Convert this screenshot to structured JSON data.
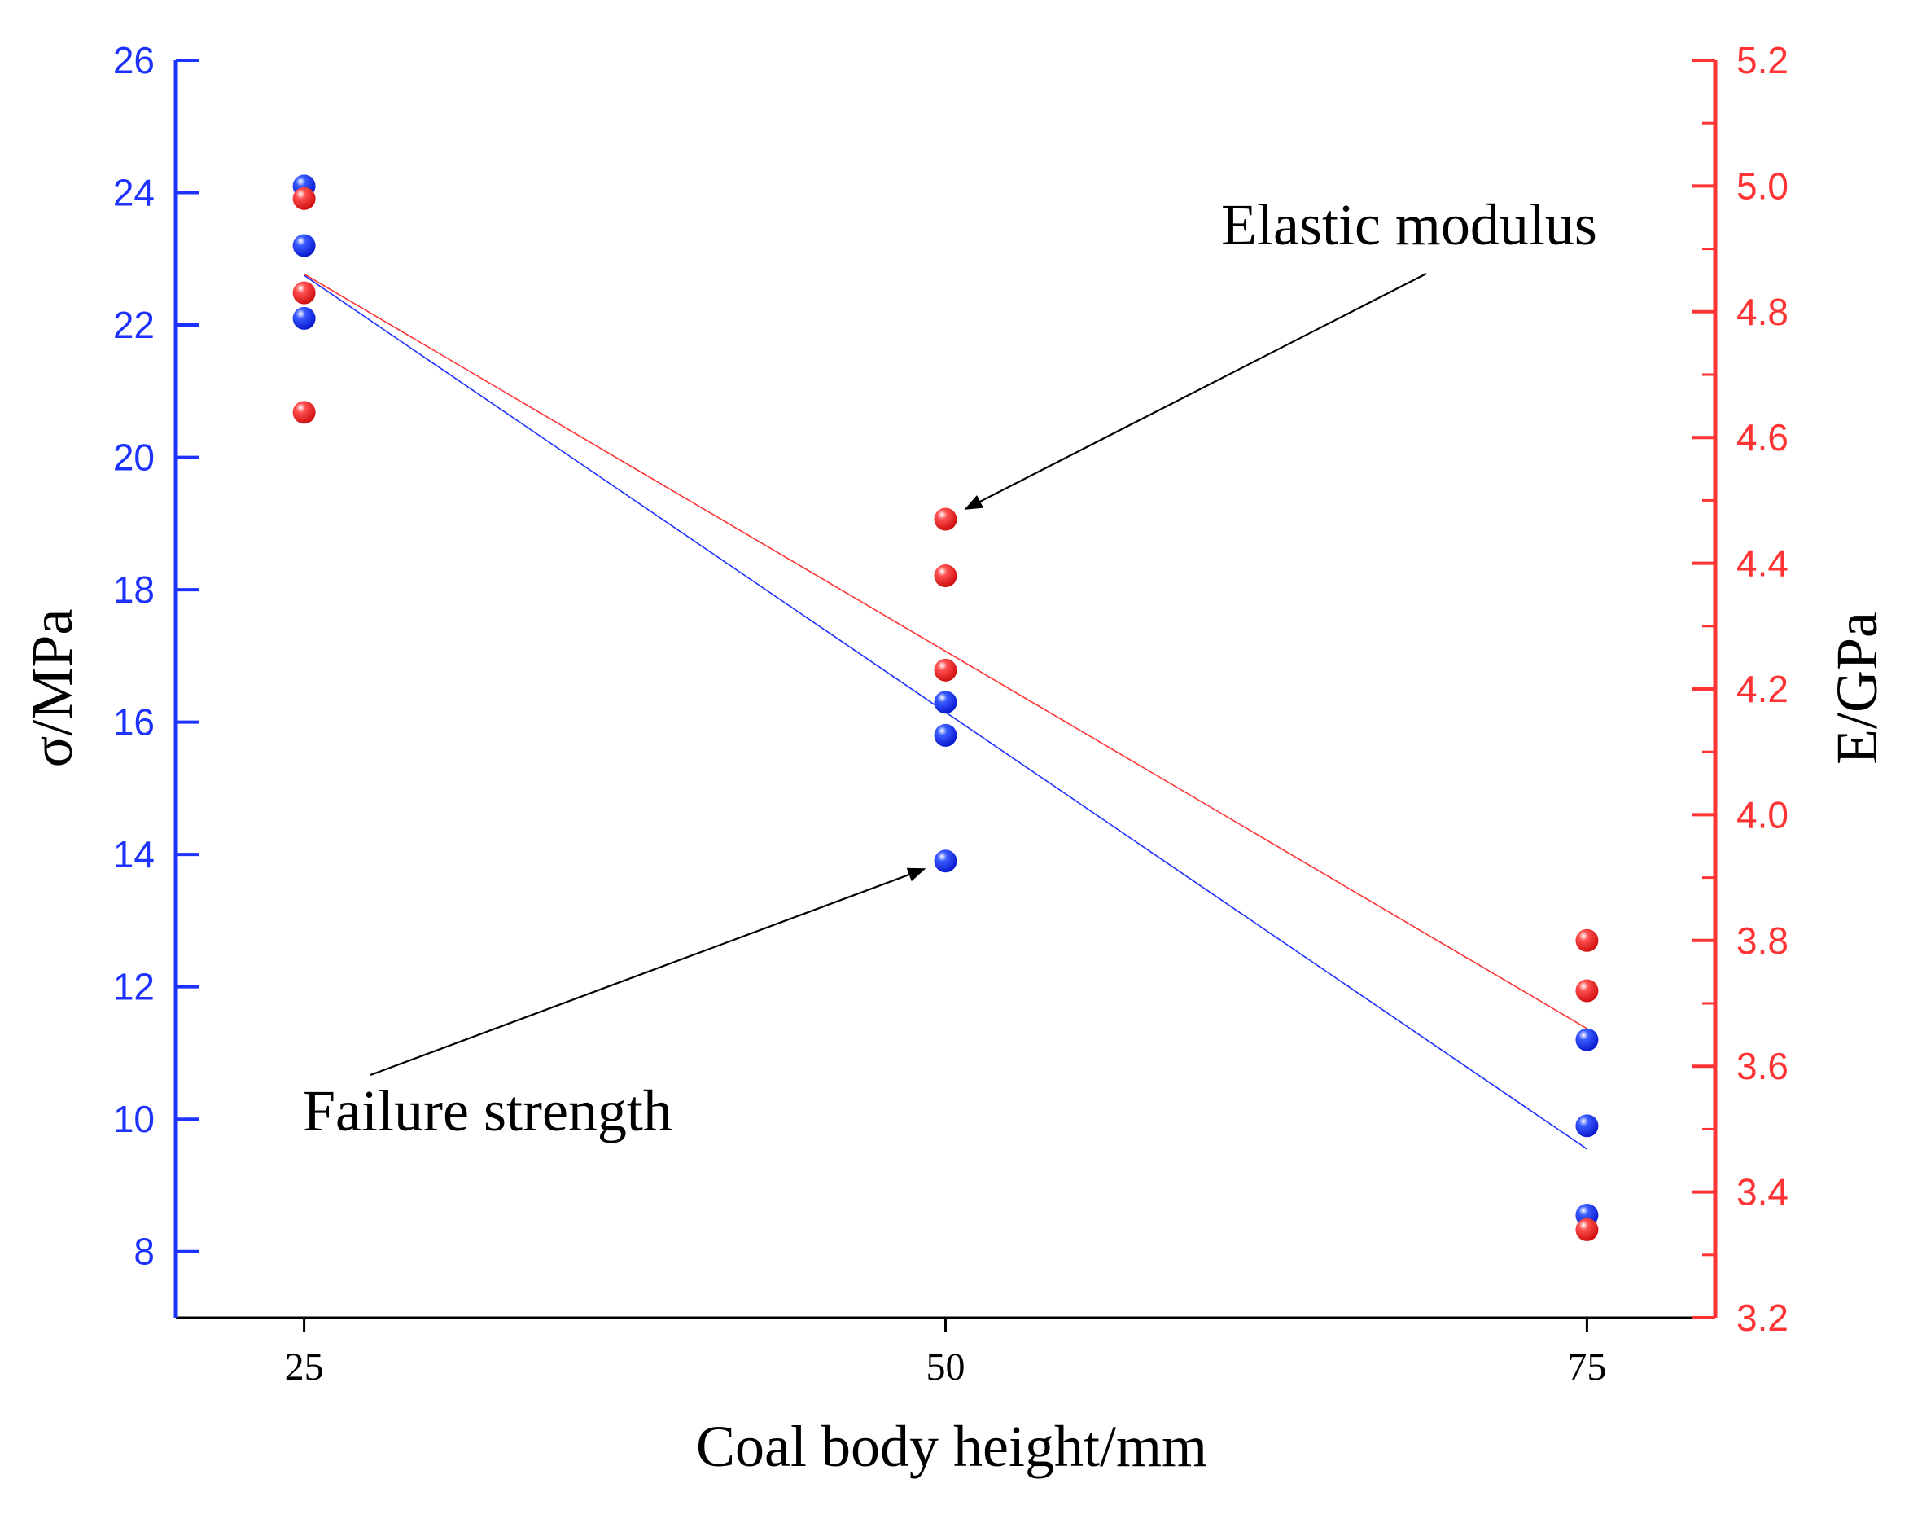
{
  "chart_data": {
    "type": "scatter",
    "xlabel": "Coal body height/mm",
    "ylabel_left": "σ/MPa",
    "ylabel_right": "E/GPa",
    "x_ticks": [
      25,
      50,
      75
    ],
    "xlim": [
      20,
      80
    ],
    "ylim_left": [
      7,
      26
    ],
    "ylim_right": [
      3.2,
      5.2
    ],
    "y_left_ticks": [
      8,
      10,
      12,
      14,
      16,
      18,
      20,
      22,
      24,
      26
    ],
    "y_right_ticks": [
      "3.2",
      "3.4",
      "3.6",
      "3.8",
      "4.0",
      "4.2",
      "4.4",
      "4.6",
      "4.8",
      "5.0",
      "5.2"
    ],
    "colors": {
      "left": "#1e32ff",
      "right": "#ff3333"
    },
    "series": [
      {
        "name": "Failure strength",
        "axis": "left",
        "color": "#1e32ff",
        "points": [
          [
            25,
            24.1
          ],
          [
            25,
            23.2
          ],
          [
            25,
            22.1
          ],
          [
            50,
            16.3
          ],
          [
            50,
            15.8
          ],
          [
            50,
            13.9
          ],
          [
            75,
            11.2
          ],
          [
            75,
            9.9
          ],
          [
            75,
            8.55
          ]
        ],
        "fit": [
          [
            25,
            22.75
          ],
          [
            75,
            9.55
          ]
        ]
      },
      {
        "name": "Elastic modulus",
        "axis": "right",
        "color": "#ff3333",
        "points": [
          [
            25,
            4.98
          ],
          [
            25,
            4.83
          ],
          [
            25,
            4.64
          ],
          [
            50,
            4.47
          ],
          [
            50,
            4.38
          ],
          [
            50,
            4.23
          ],
          [
            75,
            3.8
          ],
          [
            75,
            3.72
          ],
          [
            75,
            3.34
          ]
        ],
        "fit": [
          [
            25,
            4.86
          ],
          [
            75,
            3.66
          ]
        ]
      }
    ],
    "annotations": [
      {
        "text": "Elastic modulus",
        "target": [
          50,
          4.47
        ],
        "target_axis": "right"
      },
      {
        "text": "Failure strength",
        "target": [
          50,
          13.9
        ],
        "target_axis": "left"
      }
    ]
  }
}
